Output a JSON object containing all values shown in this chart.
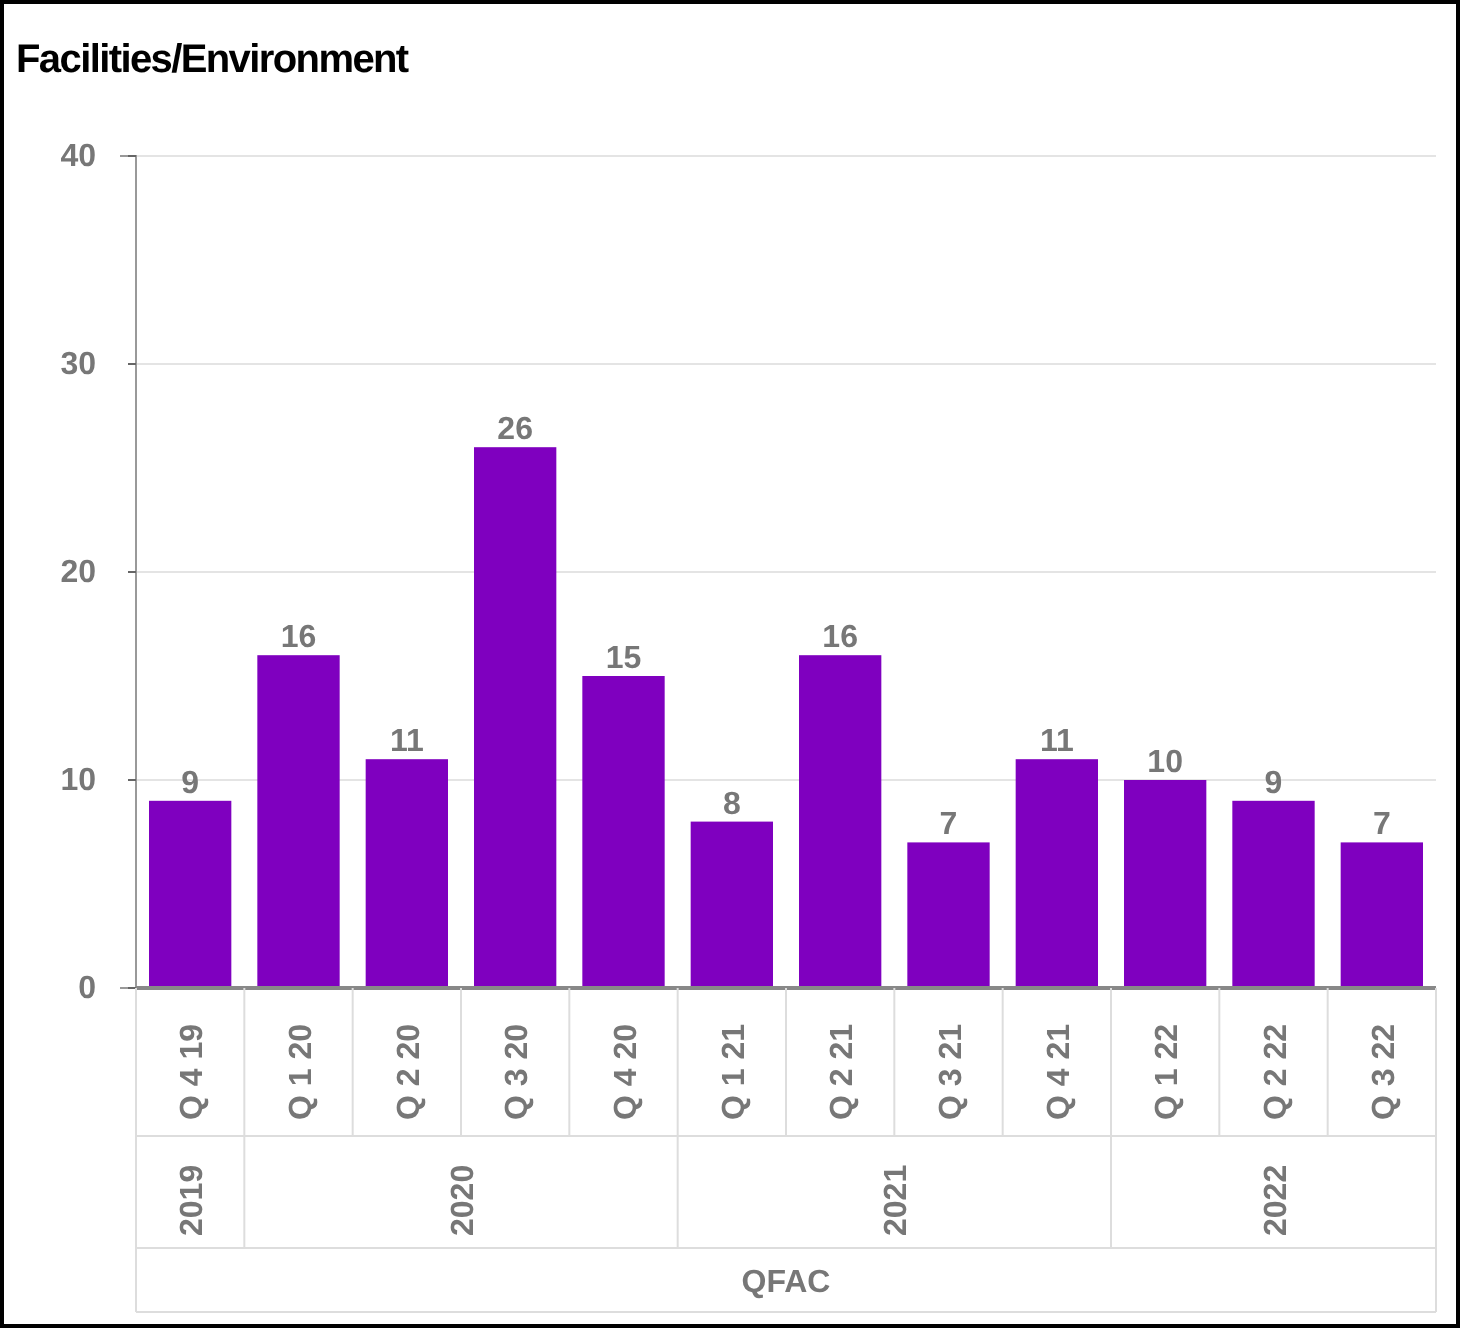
{
  "chart_data": {
    "type": "bar",
    "title": "Facilities/Environment",
    "xlabel": "QFAC",
    "categories": [
      "Q 4 19",
      "Q 1 20",
      "Q 2 20",
      "Q 3 20",
      "Q 4 20",
      "Q 1 21",
      "Q 2 21",
      "Q 3 21",
      "Q 4 21",
      "Q 1 22",
      "Q 2 22",
      "Q 3 22"
    ],
    "values": [
      9,
      16,
      11,
      26,
      15,
      8,
      16,
      7,
      11,
      10,
      9,
      7
    ],
    "color": "#7f00bf",
    "ylim": [
      0,
      40
    ],
    "yticks": [
      0,
      10,
      20,
      30,
      40
    ],
    "grid": "y",
    "data_labels": true,
    "annotations": [
      "2019",
      "2020",
      "2021",
      "2022"
    ]
  }
}
